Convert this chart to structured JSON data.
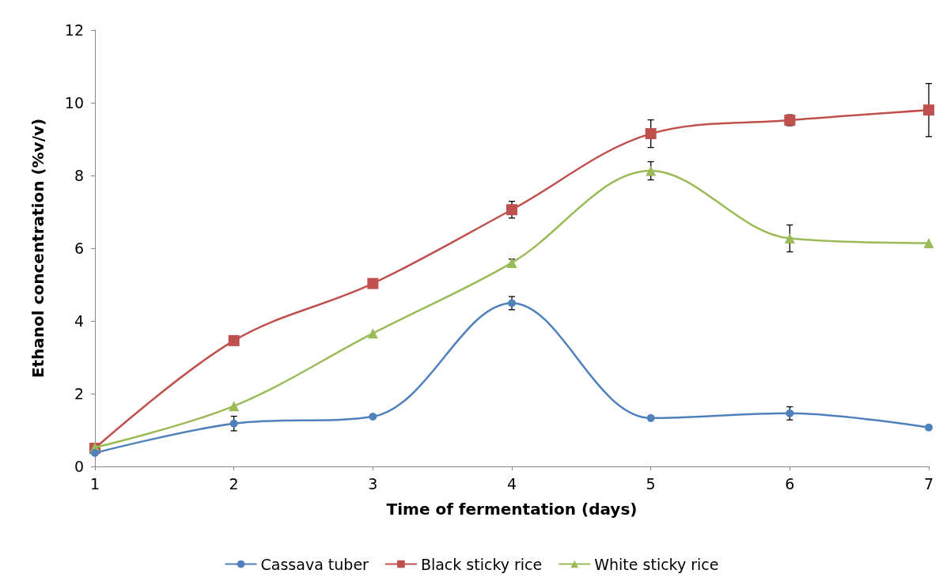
{
  "chart_data": {
    "type": "line",
    "xlabel": "Time of fermentation (days)",
    "ylabel": "Ethanol concentration (%v/v)",
    "x": [
      1,
      2,
      3,
      4,
      5,
      6,
      7
    ],
    "xlim": [
      1,
      7
    ],
    "xticks": [
      1,
      2,
      3,
      4,
      5,
      6,
      7
    ],
    "ylim": [
      0,
      12
    ],
    "yticks": [
      0,
      2,
      4,
      6,
      8,
      10,
      12
    ],
    "grid": false,
    "legend": "bottom",
    "line_style": "solid",
    "series": [
      {
        "name": "Cassava tuber",
        "color": "#4f81bd",
        "marker": "circle",
        "values": [
          0.37,
          1.18,
          1.37,
          4.49,
          1.33,
          1.46,
          1.07
        ],
        "errors": [
          null,
          0.2,
          null,
          0.18,
          null,
          0.18,
          null
        ]
      },
      {
        "name": "Black sticky rice",
        "color": "#c0504d",
        "marker": "square",
        "values": [
          0.5,
          3.46,
          5.03,
          7.06,
          9.15,
          9.52,
          9.8
        ],
        "errors": [
          null,
          null,
          null,
          0.23,
          0.38,
          0.15,
          0.73
        ]
      },
      {
        "name": "White sticky rice",
        "color": "#9bbb59",
        "marker": "triangle",
        "values": [
          0.52,
          1.66,
          3.66,
          5.6,
          8.13,
          6.27,
          6.14
        ],
        "errors": [
          null,
          null,
          null,
          0.1,
          0.25,
          0.37,
          null
        ]
      }
    ]
  }
}
